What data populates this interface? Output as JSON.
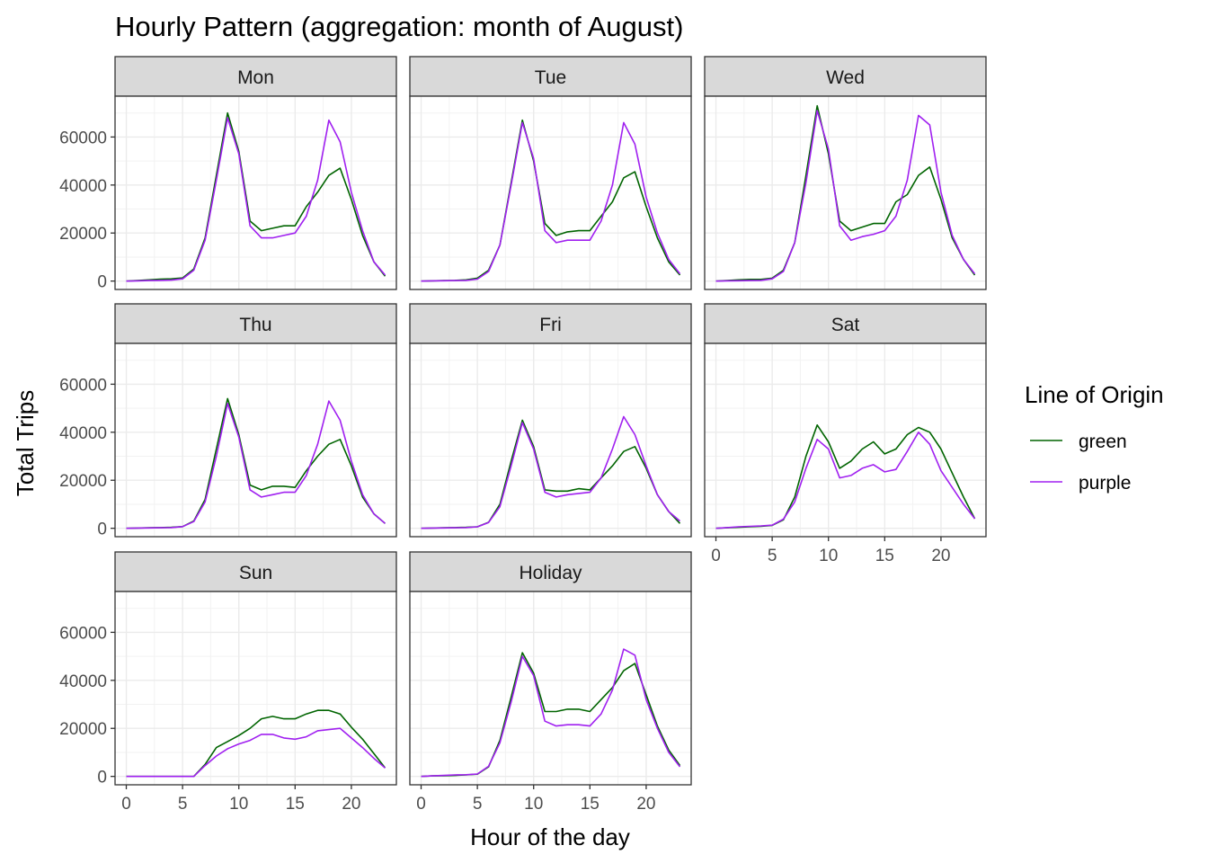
{
  "chart_data": {
    "type": "line",
    "title": "Hourly Pattern (aggregation: month of August)",
    "xlabel": "Hour of the day",
    "ylabel": "Total Trips",
    "xlim": [
      -1,
      24
    ],
    "ylim": [
      -3500,
      77000
    ],
    "x_ticks": [
      0,
      5,
      10,
      15,
      20
    ],
    "y_ticks": [
      0,
      20000,
      40000,
      60000
    ],
    "grid": true,
    "legend": {
      "title": "Line of Origin",
      "position": "right",
      "entries": [
        {
          "label": "green",
          "color": "#006400"
        },
        {
          "label": "purple",
          "color": "#A020F0"
        }
      ]
    },
    "x": [
      0,
      1,
      2,
      3,
      4,
      5,
      6,
      7,
      8,
      9,
      10,
      11,
      12,
      13,
      14,
      15,
      16,
      17,
      18,
      19,
      20,
      21,
      22,
      23
    ],
    "panels": [
      {
        "label": "Mon",
        "series": [
          {
            "name": "green",
            "values": [
              0,
              200,
              500,
              800,
              900,
              1300,
              5000,
              18000,
              44000,
              70000,
              54000,
              25000,
              21000,
              22000,
              23000,
              23000,
              31000,
              37000,
              44000,
              47000,
              34000,
              19000,
              8000,
              2000
            ]
          },
          {
            "name": "purple",
            "values": [
              0,
              100,
              200,
              300,
              400,
              900,
              4500,
              17000,
              42000,
              68000,
              53000,
              23000,
              18000,
              18000,
              19000,
              20000,
              27000,
              42000,
              67000,
              58000,
              37000,
              21000,
              8000,
              2500
            ]
          }
        ]
      },
      {
        "label": "Tue",
        "series": [
          {
            "name": "green",
            "values": [
              0,
              100,
              200,
              300,
              500,
              1200,
              4500,
              15000,
              41000,
              67000,
              50000,
              24000,
              19000,
              20500,
              21000,
              21000,
              27000,
              33000,
              43000,
              45500,
              31000,
              18000,
              8000,
              2500
            ]
          },
          {
            "name": "purple",
            "values": [
              0,
              100,
              150,
              200,
              300,
              800,
              4000,
              15000,
              40000,
              66000,
              51000,
              21000,
              16000,
              17000,
              17000,
              17000,
              25000,
              40000,
              66000,
              57000,
              35000,
              20000,
              9000,
              3000
            ]
          }
        ]
      },
      {
        "label": "Wed",
        "series": [
          {
            "name": "green",
            "values": [
              0,
              200,
              500,
              700,
              700,
              1200,
              4500,
              16000,
              44000,
              73000,
              53000,
              25000,
              21000,
              22500,
              24000,
              24000,
              33000,
              36000,
              44000,
              47500,
              34000,
              18000,
              9000,
              2500
            ]
          },
          {
            "name": "purple",
            "values": [
              0,
              100,
              150,
              200,
              300,
              900,
              4000,
              16000,
              41000,
              71000,
              55000,
              23000,
              17000,
              18500,
              19500,
              21000,
              27000,
              42000,
              69000,
              65000,
              37000,
              19000,
              9000,
              3000
            ]
          }
        ]
      },
      {
        "label": "Thu",
        "series": [
          {
            "name": "green",
            "values": [
              0,
              100,
              200,
              300,
              400,
              700,
              3000,
              12000,
              33000,
              54000,
              39000,
              18000,
              16000,
              17500,
              17500,
              17000,
              24000,
              30000,
              35000,
              37000,
              26000,
              13000,
              6000,
              2000
            ]
          },
          {
            "name": "purple",
            "values": [
              0,
              80,
              150,
              200,
              300,
              700,
              2800,
              11000,
              30000,
              52000,
              38000,
              16000,
              13000,
              14000,
              15000,
              15000,
              22000,
              35000,
              53000,
              45000,
              28000,
              14000,
              6000,
              2000
            ]
          }
        ]
      },
      {
        "label": "Fri",
        "series": [
          {
            "name": "green",
            "values": [
              0,
              100,
              200,
              300,
              400,
              600,
              2500,
              10000,
              28000,
              45000,
              34000,
              16000,
              15500,
              15500,
              16500,
              16000,
              21000,
              26000,
              32000,
              34000,
              25000,
              14000,
              7000,
              2000
            ]
          },
          {
            "name": "purple",
            "values": [
              0,
              80,
              150,
              200,
              300,
              600,
              2400,
              9000,
              26000,
              44000,
              33000,
              15000,
              13000,
              14000,
              14500,
              15000,
              21000,
              33000,
              46500,
              39000,
              26000,
              14000,
              7000,
              3000
            ]
          }
        ]
      },
      {
        "label": "Sat",
        "series": [
          {
            "name": "green",
            "values": [
              0,
              200,
              400,
              600,
              800,
              1200,
              3500,
              13000,
              30000,
              43000,
              36000,
              25000,
              28000,
              33000,
              36000,
              31000,
              33000,
              39000,
              42000,
              40000,
              33000,
              23000,
              13000,
              4000
            ]
          },
          {
            "name": "purple",
            "values": [
              0,
              300,
              600,
              800,
              1000,
              1300,
              3800,
              11000,
              25000,
              37000,
              33000,
              21000,
              22000,
              25000,
              26500,
              23500,
              24500,
              32000,
              40000,
              35000,
              24000,
              17000,
              10000,
              4000
            ]
          }
        ]
      },
      {
        "label": "Sun",
        "series": [
          {
            "name": "green",
            "values": [
              0,
              0,
              0,
              0,
              0,
              0,
              0,
              5000,
              12000,
              14500,
              17000,
              20000,
              24000,
              25000,
              24000,
              24000,
              26000,
              27500,
              27500,
              26000,
              20500,
              15500,
              9500,
              3500
            ]
          },
          {
            "name": "purple",
            "values": [
              0,
              0,
              0,
              0,
              0,
              0,
              0,
              4500,
              8500,
              11500,
              13500,
              15000,
              17500,
              17500,
              16000,
              15500,
              16500,
              19000,
              19500,
              20000,
              16000,
              12000,
              7500,
              3500
            ]
          }
        ]
      },
      {
        "label": "Holiday",
        "series": [
          {
            "name": "green",
            "values": [
              0,
              200,
              300,
              400,
              600,
              900,
              4000,
              15000,
              33000,
              51500,
              43000,
              27000,
              27000,
              28000,
              28000,
              27000,
              32000,
              37000,
              44000,
              47000,
              34000,
              21000,
              11000,
              4500
            ]
          },
          {
            "name": "purple",
            "values": [
              0,
              200,
              400,
              600,
              700,
              1000,
              4200,
              14000,
              31000,
              50000,
              42000,
              23000,
              21000,
              21500,
              21500,
              21000,
              26000,
              36000,
              53000,
              50500,
              32000,
              20000,
              10000,
              4000
            ]
          }
        ]
      }
    ]
  }
}
